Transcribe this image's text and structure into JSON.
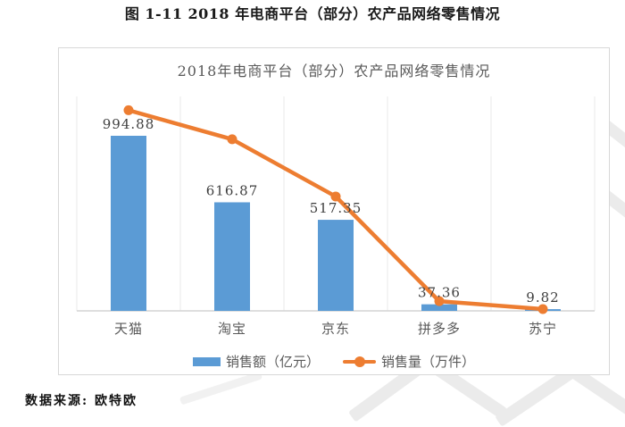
{
  "page": {
    "title": "图 1-11 2018 年电商平台（部分）农产品网络零售情况",
    "source": "数据来源: 欧特欧"
  },
  "chart_data": {
    "type": "bar",
    "subtype": "combo-bar-line",
    "title": "2018年电商平台（部分）农产品网络零售情况",
    "categories": [
      "天猫",
      "淘宝",
      "京东",
      "拼多多",
      "苏宁"
    ],
    "series": [
      {
        "name": "销售额（亿元）",
        "type": "bar",
        "values": [
          994.88,
          616.87,
          517.35,
          37.36,
          9.82
        ],
        "value_labels": [
          "994.88",
          "616.87",
          "517.35",
          "37.36",
          "9.82"
        ],
        "color": "#5B9BD5"
      },
      {
        "name": "销售量（万件）",
        "type": "line",
        "values_estimated": [
          1140,
          975,
          650,
          55,
          10
        ],
        "color": "#ED7D31"
      }
    ],
    "xlabel": "",
    "ylabel": "",
    "axis_labels_visible": false,
    "gridlines": "vertical-category-separators",
    "legend_position": "bottom",
    "colors": {
      "bar": "#5B9BD5",
      "line": "#ED7D31",
      "gridline": "#e9e9e9",
      "axis_line": "#d4d4d4",
      "chart_border": "#d8d8d8",
      "title_text": "#595959",
      "label_text": "#3f3f3f",
      "category_text": "#595959"
    }
  }
}
